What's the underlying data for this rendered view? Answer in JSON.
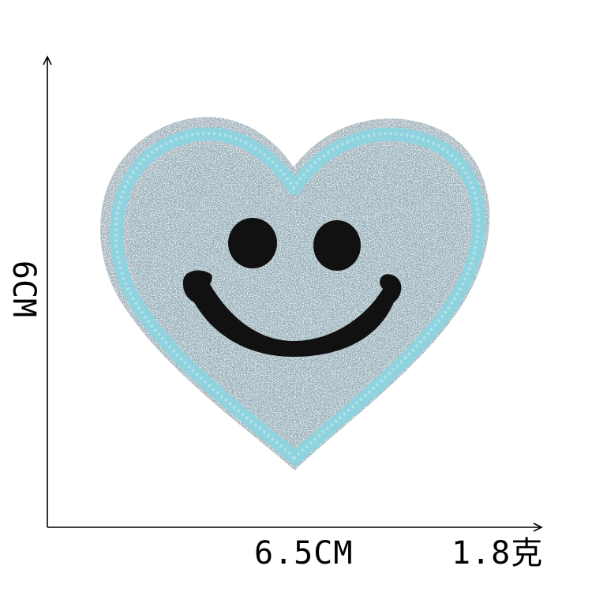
{
  "product": {
    "name_icon": "heart-smiley-glitter-patch",
    "dimensions": {
      "height": "6CM",
      "width": "6.5CM",
      "weight": "1.8克"
    },
    "colors": {
      "border_thread": "#8fd3de",
      "glitter_base": "#9aa9b3",
      "glitter_light": "#e3eef2",
      "glitter_teal": "#7fc3cf",
      "face_embroidery": "#111111",
      "measure_lines": "#000000"
    }
  }
}
